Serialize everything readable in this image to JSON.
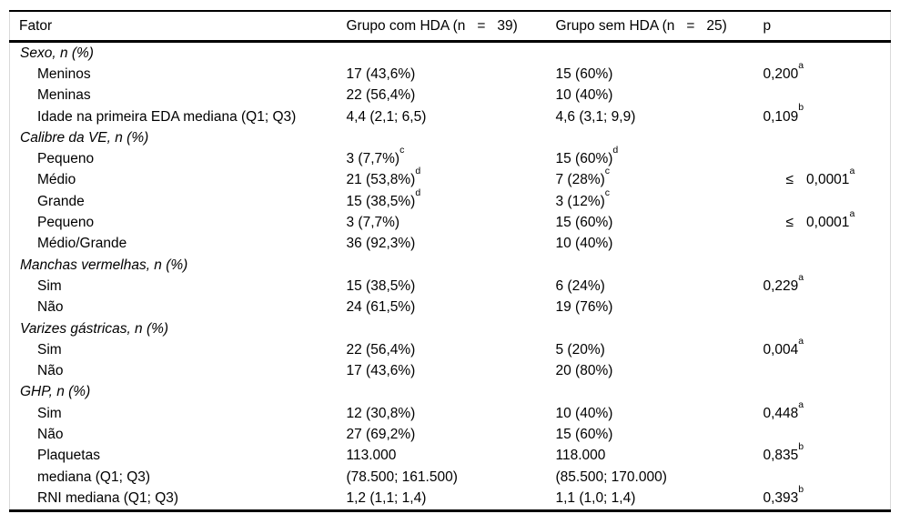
{
  "table": {
    "headers": [
      "Fator",
      "Grupo com HDA (n   =   39)",
      "Grupo sem HDA (n   =   25)",
      "p"
    ],
    "rows": [
      {
        "type": "group",
        "factor": "Sexo, n (%)"
      },
      {
        "type": "item",
        "factor": "Meninos",
        "g1": "17 (43,6%)",
        "g2": "15 (60%)",
        "p": "0,200",
        "p_sup": "a"
      },
      {
        "type": "item",
        "factor": "Meninas",
        "g1": "22 (56,4%)",
        "g2": "10 (40%)"
      },
      {
        "type": "item",
        "factor": "Idade na primeira EDA mediana (Q1; Q3)",
        "g1": "4,4 (2,1; 6,5)",
        "g2": "4,6 (3,1; 9,9)",
        "p": "0,109",
        "p_sup": "b"
      },
      {
        "type": "group",
        "factor": "Calibre da VE, n (%)"
      },
      {
        "type": "item",
        "factor": "Pequeno",
        "g1": "3 (7,7%)",
        "g1_sup": "c",
        "g2": "15 (60%)",
        "g2_sup": "d"
      },
      {
        "type": "item",
        "factor": "Médio",
        "g1": "21 (53,8%)",
        "g1_sup": "d",
        "g2": "7 (28%)",
        "g2_sup": "c",
        "p_prefix": "≤",
        "p": "0,0001",
        "p_sup": "a"
      },
      {
        "type": "item",
        "factor": "Grande",
        "g1": "15 (38,5%)",
        "g1_sup": "d",
        "g2": "3 (12%)",
        "g2_sup": "c"
      },
      {
        "type": "item",
        "factor": "Pequeno",
        "g1": "3 (7,7%)",
        "g2": "15 (60%)",
        "p_prefix": "≤",
        "p": "0,0001",
        "p_sup": "a"
      },
      {
        "type": "item",
        "factor": "Médio/Grande",
        "g1": "36 (92,3%)",
        "g2": "10 (40%)"
      },
      {
        "type": "group",
        "factor": "Manchas vermelhas, n (%)"
      },
      {
        "type": "item",
        "factor": "Sim",
        "g1": "15 (38,5%)",
        "g2": "6 (24%)",
        "p": "0,229",
        "p_sup": "a"
      },
      {
        "type": "item",
        "factor": "Não",
        "g1": "24 (61,5%)",
        "g2": "19 (76%)"
      },
      {
        "type": "group",
        "factor": "Varizes gástricas, n (%)"
      },
      {
        "type": "item",
        "factor": "Sim",
        "g1": "22 (56,4%)",
        "g2": "5 (20%)",
        "p": "0,004",
        "p_sup": "a"
      },
      {
        "type": "item",
        "factor": "Não",
        "g1": "17 (43,6%)",
        "g2": "20 (80%)"
      },
      {
        "type": "group",
        "factor": "GHP, n (%)"
      },
      {
        "type": "item",
        "factor": "Sim",
        "g1": "12 (30,8%)",
        "g2": "10 (40%)",
        "p": "0,448",
        "p_sup": "a"
      },
      {
        "type": "item",
        "factor": "Não",
        "g1": "27 (69,2%)",
        "g2": "15 (60%)"
      },
      {
        "type": "item",
        "factor": "Plaquetas",
        "g1": "113.000",
        "g2": "118.000",
        "p": "0,835",
        "p_sup": "b"
      },
      {
        "type": "item",
        "factor": "mediana (Q1; Q3)",
        "g1": "(78.500; 161.500)",
        "g2": "(85.500; 170.000)"
      },
      {
        "type": "item",
        "factor": "RNI mediana (Q1; Q3)",
        "g1": "1,2 (1,1; 1,4)",
        "g2": "1,1 (1,0; 1,4)",
        "p": "0,393",
        "p_sup": "b"
      }
    ]
  }
}
